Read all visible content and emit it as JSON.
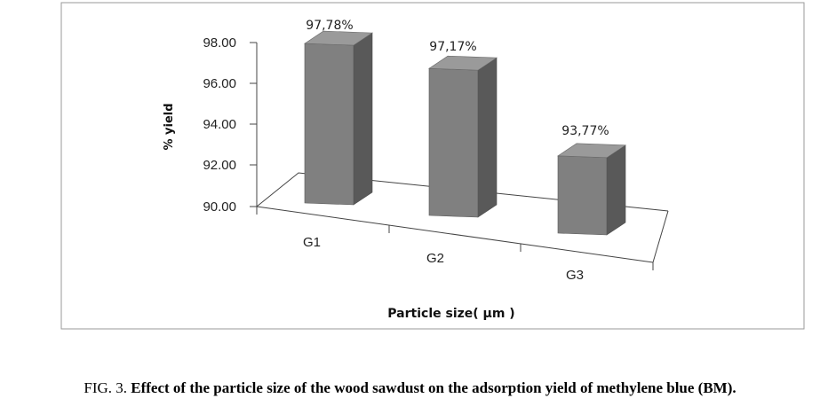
{
  "chart_data": {
    "type": "bar",
    "categories": [
      "G1",
      "G2",
      "G3"
    ],
    "values": [
      97.78,
      97.17,
      93.77
    ],
    "data_labels": [
      "97,78%",
      "97,17%",
      "93,77%"
    ],
    "yticks": [
      "98.00",
      "96.00",
      "94.00",
      "92.00",
      "90.00"
    ],
    "ylim": [
      90,
      98
    ],
    "ylabel": "% yield",
    "xlabel": "Particle size( µm )",
    "style": "3d-column",
    "bar_color": "#7f7f7f",
    "legend": "none",
    "grid": false
  },
  "caption": {
    "prefix": "FIG. 3.",
    "text": "Effect of the particle size of the wood sawdust on the adsorption yield of methylene blue (BM)."
  }
}
